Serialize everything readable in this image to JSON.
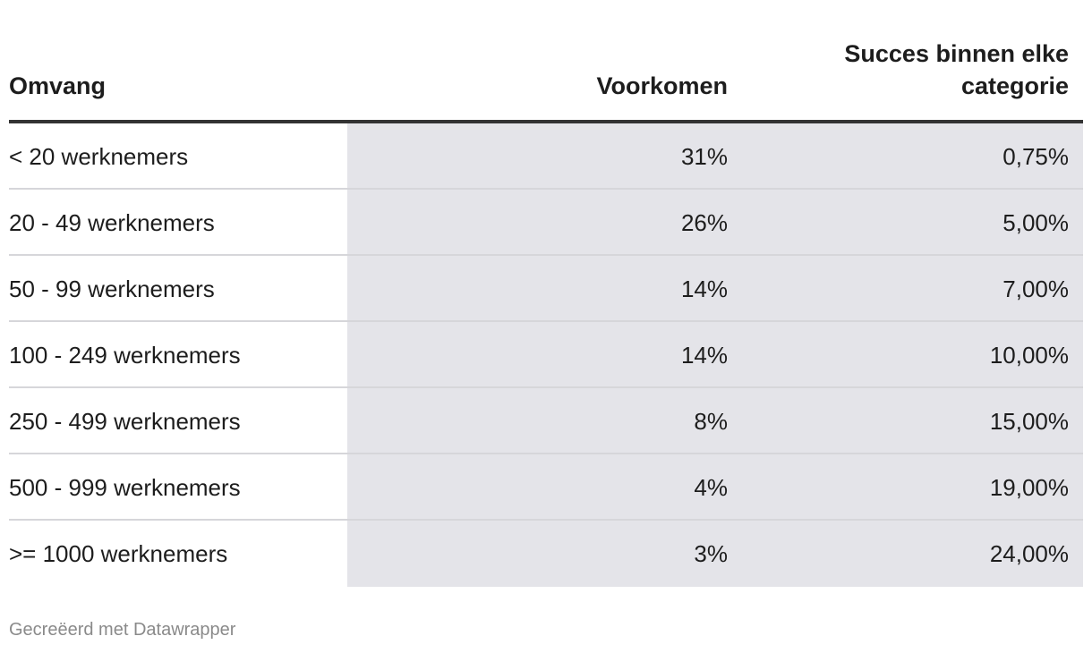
{
  "chart_data": {
    "type": "table",
    "columns": [
      "Omvang",
      "Voorkomen",
      "Succes binnen elke categorie"
    ],
    "rows": [
      {
        "omvang": "< 20 werknemers",
        "voorkomen": "31%",
        "succes": "0,75%"
      },
      {
        "omvang": "20 - 49 werknemers",
        "voorkomen": "26%",
        "succes": "5,00%"
      },
      {
        "omvang": "50 - 99 werknemers",
        "voorkomen": "14%",
        "succes": "7,00%"
      },
      {
        "omvang": "100 - 249 werknemers",
        "voorkomen": "14%",
        "succes": "10,00%"
      },
      {
        "omvang": "250 - 499 werknemers",
        "voorkomen": "8%",
        "succes": "15,00%"
      },
      {
        "omvang": "500 - 999 werknemers",
        "voorkomen": "4%",
        "succes": "19,00%"
      },
      {
        "omvang": ">= 1000 werknemers",
        "voorkomen": "3%",
        "succes": "24,00%"
      }
    ]
  },
  "header": {
    "col1": "Omvang",
    "col2": "Voorkomen",
    "col3_line1": "Succes binnen elke",
    "col3_line2": "categorie"
  },
  "footer": {
    "credit": "Gecreëerd met Datawrapper"
  },
  "colors": {
    "shade": "#e4e4e9",
    "header_rule": "#333333",
    "row_divider": "#d6d6da",
    "footer_text": "#8a8a8a"
  }
}
